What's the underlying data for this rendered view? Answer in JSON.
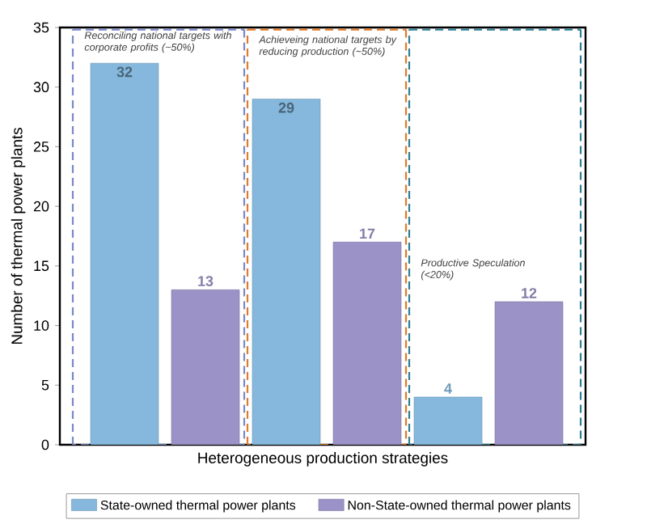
{
  "chart_data": {
    "type": "bar",
    "xlabel": "Heterogeneous production strategies",
    "ylabel": "Number of thermal power plants",
    "categories": [
      null,
      null,
      null
    ],
    "series": [
      {
        "name": "State-owned thermal power plants",
        "color": "#85b8dc",
        "values": [
          32,
          29,
          4
        ]
      },
      {
        "name": "Non-State-owned thermal power plants",
        "color": "#9b93c7",
        "values": [
          13,
          17,
          12
        ]
      }
    ],
    "ylim": [
      0,
      35
    ],
    "yticks": [
      0,
      5,
      10,
      15,
      20,
      25,
      30,
      35
    ],
    "grid": false,
    "legend": "bottom",
    "data_labels": true,
    "annotations": [
      "Reconciling national targets with corporate profits (~50%)",
      "Achieveing national targets by reducing production (~50%)",
      "Productive Speculation (<20%)"
    ]
  }
}
